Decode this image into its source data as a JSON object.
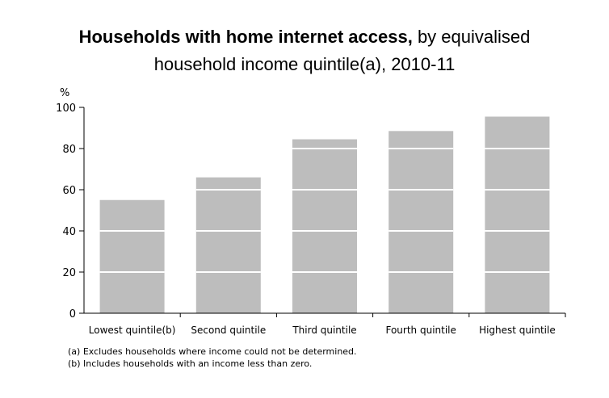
{
  "title": {
    "bold": "Households with home internet access,",
    "rest": " by equivalised",
    "line2": "household income quintile(a), 2010-11"
  },
  "chart_data": {
    "type": "bar",
    "categories": [
      "Lowest quintile(b)",
      "Second quintile",
      "Third quintile",
      "Fourth quintile",
      "Highest quintile"
    ],
    "values": [
      55,
      66,
      84.5,
      88.5,
      95.5
    ],
    "ylabel": "%",
    "ylim": [
      0,
      100
    ],
    "yticks": [
      0,
      20,
      40,
      60,
      80,
      100
    ],
    "grid": "white lines across bars at tick intervals",
    "bar_color": "#bdbdbd"
  },
  "footnotes": {
    "a": "(a) Excludes households where income could not be determined.",
    "b": "(b) Includes households with an income less than zero."
  }
}
